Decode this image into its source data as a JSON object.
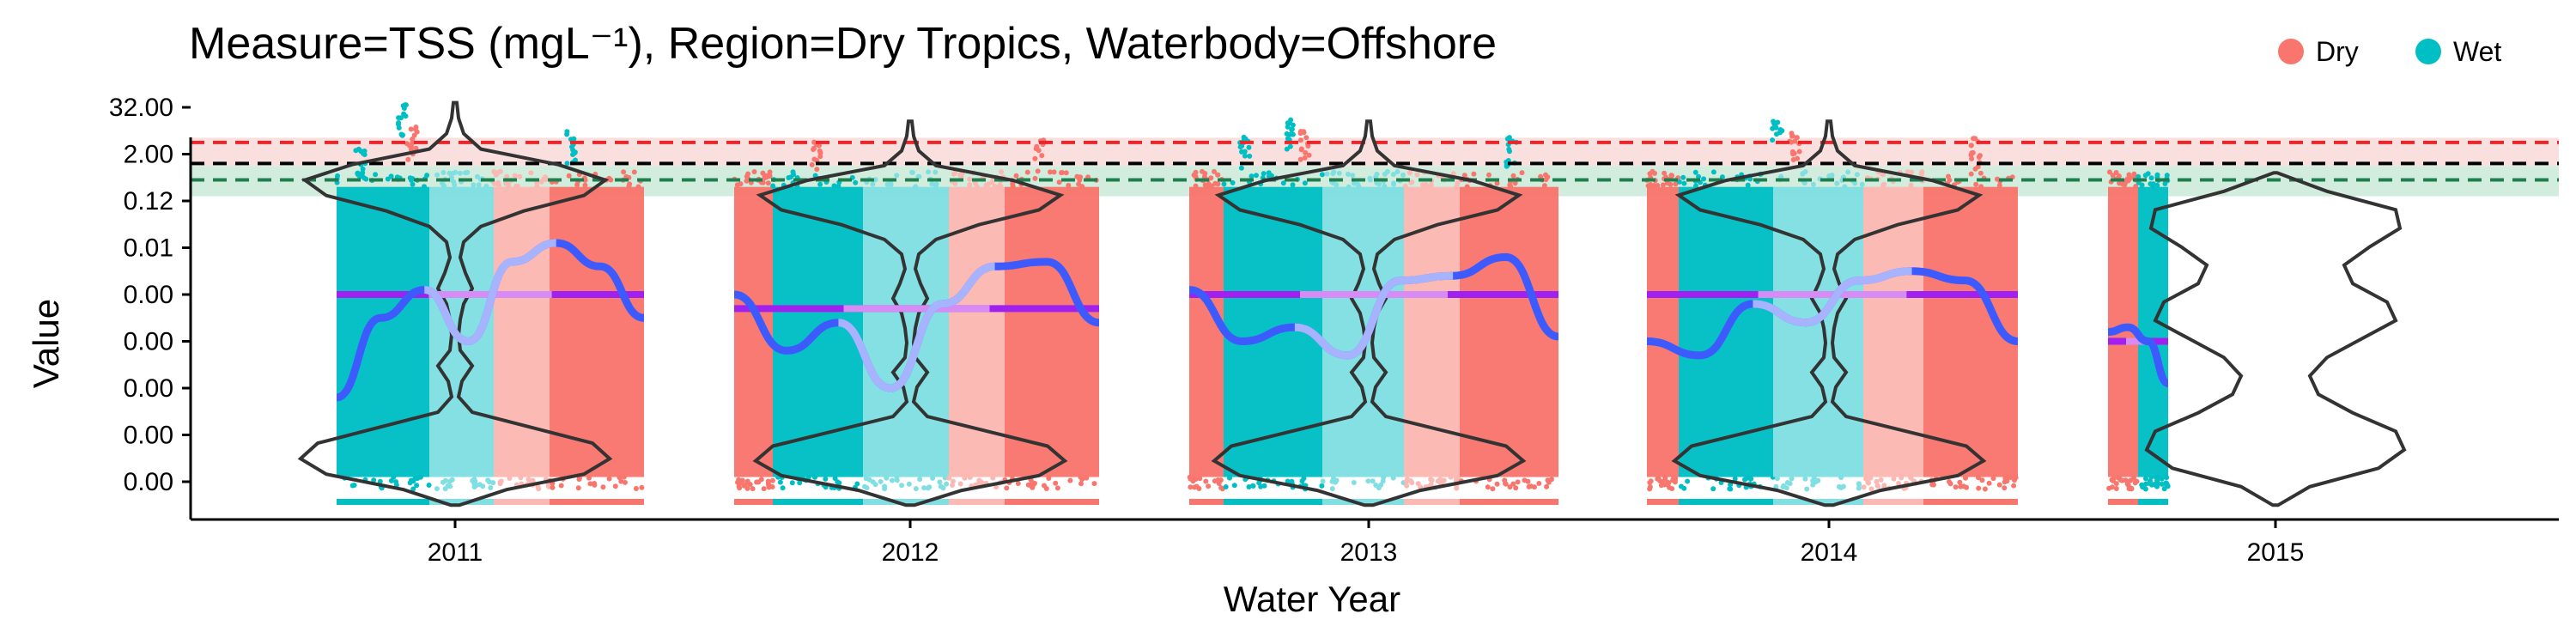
{
  "chart_data": {
    "type": "scatter",
    "title": "Measure=TSS (mgL⁻¹), Region=Dry Tropics, Waterbody=Offshore",
    "xlabel": "Water Year",
    "ylabel": "Value",
    "x_tick_labels": [
      "2011",
      "2012",
      "2013",
      "2014",
      "2015"
    ],
    "y_tick_labels": [
      "0.00",
      "0.00",
      "0.00",
      "0.00",
      "0.00",
      "0.01",
      "0.12",
      "2.00",
      "32.00"
    ],
    "y_scale": "log",
    "legend": {
      "position": "top-right",
      "entries": [
        {
          "name": "Dry",
          "color": "#F8766D"
        },
        {
          "name": "Wet",
          "color": "#00BFC4"
        }
      ]
    },
    "colors": {
      "dry": "#F8766D",
      "wet": "#00BFC4",
      "dry_light": "#FCB8B2",
      "wet_light": "#80DFE2",
      "trend": "#3D5AFE",
      "trend_light": "#A8B3FF",
      "mean": "#A020F0",
      "mean_light": "#D78CF5",
      "guideline_red": "#E8262B",
      "guideline_black": "#000000",
      "guideline_green": "#1E7F4F",
      "band_red": "#FADCDC",
      "band_green": "#CDEBD9",
      "violin": "#333333"
    },
    "guidelines": [
      {
        "name": "red",
        "value_index": 7.25
      },
      {
        "name": "black",
        "value_index": 6.8
      },
      {
        "name": "green",
        "value_index": 6.45
      }
    ],
    "years": [
      {
        "year": "2011",
        "mean_index": 4.0,
        "trend_index": [
          1.8,
          3.5,
          4.1,
          3.0,
          4.7,
          5.1,
          4.6,
          3.5
        ]
      },
      {
        "year": "2012",
        "mean_index": 3.7,
        "trend_index": [
          4.0,
          2.8,
          3.4,
          2.0,
          3.8,
          4.6,
          4.7,
          3.4
        ]
      },
      {
        "year": "2013",
        "mean_index": 4.0,
        "trend_index": [
          4.1,
          3.0,
          3.3,
          2.7,
          4.3,
          4.4,
          4.8,
          3.1
        ]
      },
      {
        "year": "2014",
        "mean_index": 4.0,
        "trend_index": [
          3.0,
          2.7,
          3.8,
          3.4,
          4.3,
          4.5,
          4.3,
          3.0
        ]
      },
      {
        "year": "2015",
        "mean_index": 3.0,
        "trend_index": [
          3.2,
          3.3,
          3.0,
          2.1
        ]
      }
    ]
  }
}
